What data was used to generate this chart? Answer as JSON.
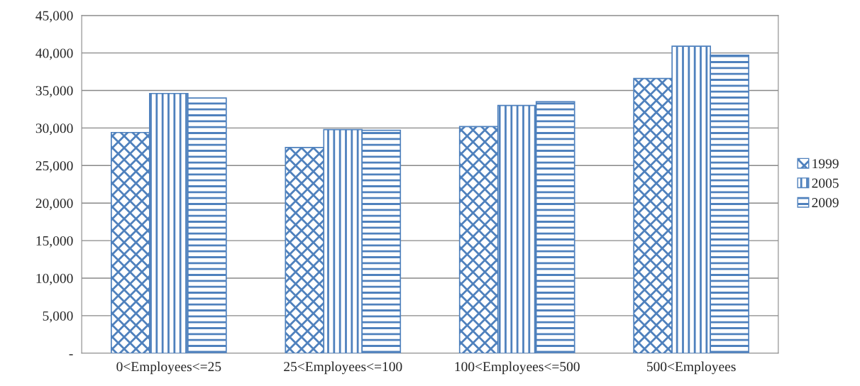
{
  "chart_data": {
    "type": "bar",
    "categories": [
      "0<Employees<=25",
      "25<Employees<=100",
      "100<Employees<=500",
      "500<Employees"
    ],
    "series": [
      {
        "name": "1999",
        "color": "#4f81bd",
        "values": [
          29400,
          27400,
          30200,
          36600
        ]
      },
      {
        "name": "2005",
        "color": "#4f81bd",
        "values": [
          34600,
          29800,
          33000,
          40900
        ]
      },
      {
        "name": "2009",
        "color": "#4f81bd",
        "values": [
          34000,
          29700,
          33500,
          39700
        ]
      }
    ],
    "ylim": [
      0,
      45000
    ],
    "yticks": [
      {
        "value": 0,
        "label": "-"
      },
      {
        "value": 5000,
        "label": "5,000"
      },
      {
        "value": 10000,
        "label": "10,000"
      },
      {
        "value": 15000,
        "label": "15,000"
      },
      {
        "value": 20000,
        "label": "20,000"
      },
      {
        "value": 25000,
        "label": "25,000"
      },
      {
        "value": 30000,
        "label": "30,000"
      },
      {
        "value": 35000,
        "label": "35,000"
      },
      {
        "value": 40000,
        "label": "40,000"
      },
      {
        "value": 45000,
        "label": "45,000"
      }
    ],
    "grid": "y",
    "legend": "right"
  }
}
